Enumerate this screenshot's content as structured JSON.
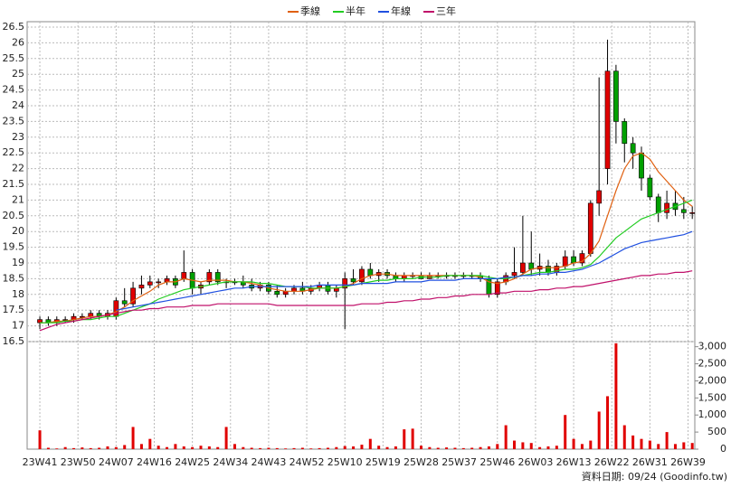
{
  "chart_data": {
    "type": "candlestick",
    "note": "資料日期: 09/24  (Goodinfo.tw)",
    "up_color": "#e00000",
    "down_color": "#00a000",
    "volume_color": "#e00000",
    "xlim": [
      -1.5,
      77.3
    ],
    "xticks": [
      {
        "value": 0,
        "label": "23W41"
      },
      {
        "value": 4.5,
        "label": "23W50"
      },
      {
        "value": 9,
        "label": "24W07"
      },
      {
        "value": 13.5,
        "label": "24W16"
      },
      {
        "value": 18,
        "label": "24W25"
      },
      {
        "value": 22.5,
        "label": "24W34"
      },
      {
        "value": 27,
        "label": "24W43"
      },
      {
        "value": 31.5,
        "label": "24W52"
      },
      {
        "value": 36,
        "label": "25W10"
      },
      {
        "value": 40.5,
        "label": "25W19"
      },
      {
        "value": 45,
        "label": "25W28"
      },
      {
        "value": 49.5,
        "label": "25W37"
      },
      {
        "value": 54,
        "label": "25W46"
      },
      {
        "value": 58.5,
        "label": "26W03"
      },
      {
        "value": 63,
        "label": "26W13"
      },
      {
        "value": 67.5,
        "label": "26W22"
      },
      {
        "value": 72,
        "label": "26W31"
      },
      {
        "value": 76.5,
        "label": "26W39"
      }
    ],
    "ylim": [
      16.5,
      26.5
    ],
    "yticks": [
      16.5,
      17,
      17.5,
      18,
      18.5,
      19,
      19.5,
      20,
      20.5,
      21,
      21.5,
      22,
      22.5,
      23,
      23.5,
      24,
      24.5,
      25,
      25.5,
      26,
      26.5
    ],
    "y2lim": [
      0,
      3150
    ],
    "y2ticks": [
      0,
      500,
      {
        "value": 1000,
        "label": "1,000"
      },
      {
        "value": 1500,
        "label": "1,500"
      },
      {
        "value": 2000,
        "label": "2,000"
      },
      {
        "value": 2500,
        "label": "2,500"
      },
      {
        "value": 3000,
        "label": "3,000"
      }
    ],
    "grid": true,
    "open": [
      17.1,
      17.2,
      17.1,
      17.2,
      17.2,
      17.3,
      17.3,
      17.4,
      17.3,
      17.3,
      17.8,
      17.7,
      18.2,
      18.3,
      18.4,
      18.4,
      18.5,
      18.5,
      18.7,
      18.2,
      18.4,
      18.7,
      18.4,
      18.4,
      18.4,
      18.3,
      18.2,
      18.3,
      18.1,
      18.0,
      18.1,
      18.2,
      18.1,
      18.2,
      18.3,
      18.1,
      18.2,
      18.5,
      18.4,
      18.8,
      18.6,
      18.7,
      18.6,
      18.5,
      18.6,
      18.6,
      18.5,
      18.6,
      18.6,
      18.6,
      18.6,
      18.6,
      18.6,
      18.5,
      18.0,
      18.4,
      18.6,
      18.7,
      19.0,
      18.8,
      18.9,
      18.7,
      18.9,
      19.2,
      19.0,
      19.3,
      20.9,
      22.0,
      25.1,
      23.5,
      22.8,
      22.5,
      21.7,
      21.1,
      20.6,
      20.9,
      20.7,
      20.6
    ],
    "high": [
      17.3,
      17.3,
      17.3,
      17.3,
      17.4,
      17.4,
      17.5,
      17.5,
      17.5,
      17.9,
      18.2,
      18.4,
      18.6,
      18.6,
      18.5,
      18.6,
      18.6,
      19.4,
      18.8,
      18.4,
      18.8,
      18.8,
      18.5,
      18.5,
      18.6,
      18.5,
      18.4,
      18.4,
      18.3,
      18.2,
      18.3,
      18.4,
      18.3,
      18.4,
      18.4,
      18.3,
      18.7,
      18.8,
      18.9,
      19.0,
      18.8,
      18.8,
      18.7,
      18.7,
      18.7,
      18.7,
      18.7,
      18.7,
      18.7,
      18.7,
      18.7,
      18.7,
      18.7,
      18.6,
      18.5,
      18.7,
      19.5,
      20.5,
      20.0,
      19.3,
      19.1,
      19.0,
      19.4,
      19.4,
      19.4,
      21.0,
      24.9,
      26.1,
      25.3,
      23.6,
      23.0,
      22.7,
      21.8,
      21.2,
      21.3,
      21.3,
      21.1,
      20.8
    ],
    "low": [
      16.9,
      17.0,
      17.0,
      17.1,
      17.1,
      17.2,
      17.2,
      17.2,
      17.2,
      17.2,
      17.6,
      17.6,
      18.0,
      18.2,
      18.2,
      18.3,
      18.2,
      18.4,
      18.0,
      18.0,
      18.3,
      18.3,
      18.2,
      18.3,
      18.2,
      18.1,
      18.1,
      18.0,
      17.9,
      17.9,
      18.0,
      18.0,
      18.0,
      18.1,
      18.0,
      17.9,
      16.9,
      18.3,
      18.3,
      18.5,
      18.4,
      18.5,
      18.4,
      18.4,
      18.5,
      18.5,
      18.5,
      18.5,
      18.5,
      18.5,
      18.5,
      18.5,
      18.4,
      17.9,
      17.9,
      18.3,
      18.5,
      18.6,
      18.6,
      18.6,
      18.6,
      18.6,
      18.8,
      18.9,
      18.9,
      19.2,
      20.5,
      21.5,
      22.8,
      22.2,
      22.0,
      21.3,
      21.0,
      20.3,
      20.4,
      20.5,
      20.4,
      20.4
    ],
    "close": [
      17.2,
      17.1,
      17.2,
      17.2,
      17.3,
      17.3,
      17.4,
      17.3,
      17.4,
      17.8,
      17.7,
      18.2,
      18.3,
      18.4,
      18.4,
      18.5,
      18.3,
      18.7,
      18.2,
      18.3,
      18.7,
      18.4,
      18.4,
      18.4,
      18.3,
      18.2,
      18.3,
      18.1,
      18.0,
      18.1,
      18.2,
      18.1,
      18.2,
      18.3,
      18.1,
      18.2,
      18.5,
      18.4,
      18.8,
      18.6,
      18.7,
      18.6,
      18.5,
      18.6,
      18.6,
      18.5,
      18.6,
      18.6,
      18.6,
      18.6,
      18.6,
      18.6,
      18.5,
      18.0,
      18.4,
      18.6,
      18.7,
      19.0,
      18.8,
      18.9,
      18.7,
      18.9,
      19.2,
      19.0,
      19.3,
      20.9,
      21.3,
      25.1,
      23.5,
      22.8,
      22.5,
      21.7,
      21.1,
      20.6,
      20.9,
      20.7,
      20.6,
      20.6
    ],
    "volume": [
      550,
      40,
      20,
      60,
      30,
      50,
      30,
      40,
      80,
      60,
      120,
      650,
      150,
      300,
      100,
      60,
      150,
      80,
      60,
      100,
      80,
      60,
      650,
      150,
      60,
      40,
      30,
      40,
      30,
      20,
      30,
      40,
      20,
      30,
      40,
      60,
      90,
      80,
      130,
      300,
      100,
      60,
      80,
      580,
      600,
      100,
      60,
      40,
      50,
      40,
      30,
      40,
      60,
      80,
      150,
      700,
      250,
      200,
      180,
      60,
      80,
      100,
      1000,
      300,
      150,
      250,
      1100,
      1550,
      3100,
      700,
      400,
      300,
      250,
      150,
      500,
      150,
      200,
      180
    ],
    "series": [
      {
        "name": "季線",
        "color": "#e06010",
        "values": [
          17.1,
          17.1,
          17.15,
          17.15,
          17.2,
          17.25,
          17.3,
          17.3,
          17.35,
          17.45,
          17.6,
          17.8,
          17.95,
          18.1,
          18.3,
          18.4,
          18.4,
          18.5,
          18.45,
          18.4,
          18.45,
          18.45,
          18.45,
          18.4,
          18.4,
          18.35,
          18.3,
          18.2,
          18.15,
          18.1,
          18.1,
          18.1,
          18.15,
          18.2,
          18.2,
          18.2,
          18.25,
          18.35,
          18.5,
          18.6,
          18.65,
          18.65,
          18.6,
          18.6,
          18.6,
          18.6,
          18.6,
          18.6,
          18.6,
          18.6,
          18.6,
          18.6,
          18.55,
          18.4,
          18.35,
          18.4,
          18.5,
          18.65,
          18.8,
          18.85,
          18.85,
          18.85,
          18.9,
          19.0,
          19.05,
          19.3,
          19.7,
          20.5,
          21.3,
          22.0,
          22.4,
          22.5,
          22.3,
          21.9,
          21.6,
          21.3,
          21.0,
          20.8
        ]
      },
      {
        "name": "半年",
        "color": "#22cc22",
        "values": [
          17.1,
          17.1,
          17.1,
          17.15,
          17.15,
          17.2,
          17.2,
          17.25,
          17.3,
          17.3,
          17.4,
          17.5,
          17.6,
          17.7,
          17.85,
          17.95,
          18.05,
          18.15,
          18.2,
          18.25,
          18.3,
          18.35,
          18.4,
          18.4,
          18.4,
          18.4,
          18.35,
          18.35,
          18.3,
          18.25,
          18.25,
          18.25,
          18.2,
          18.2,
          18.2,
          18.2,
          18.25,
          18.3,
          18.35,
          18.4,
          18.45,
          18.45,
          18.5,
          18.5,
          18.5,
          18.55,
          18.55,
          18.55,
          18.6,
          18.6,
          18.6,
          18.6,
          18.6,
          18.55,
          18.5,
          18.5,
          18.55,
          18.6,
          18.65,
          18.7,
          18.7,
          18.75,
          18.8,
          18.8,
          18.85,
          18.95,
          19.2,
          19.5,
          19.8,
          20.0,
          20.2,
          20.4,
          20.5,
          20.6,
          20.7,
          20.8,
          20.9,
          21.0
        ]
      },
      {
        "name": "年線",
        "color": "#2050e0",
        "values": [
          null,
          null,
          null,
          null,
          null,
          null,
          null,
          null,
          null,
          17.5,
          17.55,
          17.6,
          17.65,
          17.7,
          17.75,
          17.8,
          17.85,
          17.9,
          17.95,
          18.0,
          18.05,
          18.1,
          18.15,
          18.2,
          18.2,
          18.25,
          18.25,
          18.25,
          18.25,
          18.25,
          18.25,
          18.25,
          18.25,
          18.3,
          18.3,
          18.3,
          18.3,
          18.3,
          18.35,
          18.35,
          18.35,
          18.35,
          18.4,
          18.4,
          18.4,
          18.4,
          18.45,
          18.45,
          18.45,
          18.45,
          18.5,
          18.5,
          18.5,
          18.5,
          18.5,
          18.55,
          18.55,
          18.6,
          18.6,
          18.65,
          18.65,
          18.7,
          18.7,
          18.75,
          18.8,
          18.9,
          19.0,
          19.15,
          19.3,
          19.45,
          19.55,
          19.65,
          19.7,
          19.75,
          19.8,
          19.85,
          19.9,
          20.0
        ]
      },
      {
        "name": "三年",
        "color": "#c0106a",
        "values": [
          16.85,
          16.95,
          17.05,
          17.1,
          17.15,
          17.2,
          17.25,
          17.3,
          17.35,
          17.4,
          17.45,
          17.5,
          17.5,
          17.55,
          17.55,
          17.6,
          17.6,
          17.6,
          17.65,
          17.65,
          17.65,
          17.7,
          17.7,
          17.7,
          17.7,
          17.7,
          17.7,
          17.7,
          17.65,
          17.65,
          17.65,
          17.65,
          17.65,
          17.65,
          17.65,
          17.65,
          17.65,
          17.65,
          17.7,
          17.7,
          17.7,
          17.75,
          17.75,
          17.8,
          17.8,
          17.85,
          17.85,
          17.9,
          17.9,
          17.95,
          17.95,
          18.0,
          18.0,
          18.0,
          18.05,
          18.05,
          18.1,
          18.1,
          18.1,
          18.15,
          18.15,
          18.2,
          18.2,
          18.25,
          18.25,
          18.3,
          18.35,
          18.4,
          18.45,
          18.5,
          18.55,
          18.6,
          18.6,
          18.65,
          18.65,
          18.7,
          18.7,
          18.75
        ]
      }
    ]
  }
}
